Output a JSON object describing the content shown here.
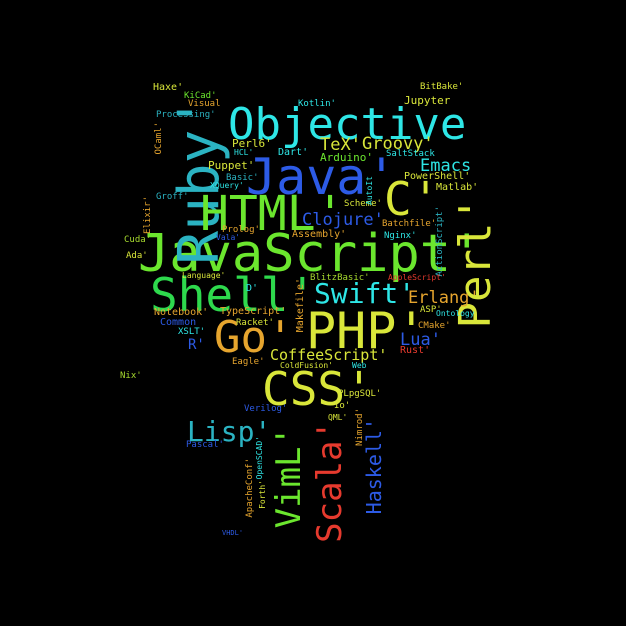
{
  "palette": {
    "background": "#000000",
    "cyan": "#2ee6e6",
    "lime": "#6be62e",
    "green": "#2ed94d",
    "blue": "#2d5be6",
    "yellow": "#d9e63a",
    "orange": "#e6a52e",
    "red": "#e63a2e",
    "teal": "#2bb3c2",
    "olive": "#a6d92e"
  },
  "words": [
    {
      "text": "Objective",
      "color": "#2ee6e6"
    },
    {
      "text": "JavaScript'",
      "color": "#6be62e"
    },
    {
      "text": "Java'",
      "color": "#2d5be6"
    },
    {
      "text": "Ruby'",
      "color": "#2bb3c2"
    },
    {
      "text": "HTML'",
      "color": "#6be62e"
    },
    {
      "text": "C'",
      "color": "#d9e63a"
    },
    {
      "text": "Shell'",
      "color": "#2ed94d"
    },
    {
      "text": "PHP'",
      "color": "#d9e63a"
    },
    {
      "text": "Perl'",
      "color": "#d9e63a"
    },
    {
      "text": "CSS'",
      "color": "#d9e63a"
    },
    {
      "text": "Go'",
      "color": "#e6a52e"
    },
    {
      "text": "Swift'",
      "color": "#2ee6e6"
    },
    {
      "text": "Lisp'",
      "color": "#2bb3c2"
    },
    {
      "text": "VimL'",
      "color": "#6be62e"
    },
    {
      "text": "Scala'",
      "color": "#e63a2e"
    },
    {
      "text": "Haskell'",
      "color": "#2d5be6"
    },
    {
      "text": "Clojure'",
      "color": "#2d5be6"
    },
    {
      "text": "Groovy'",
      "color": "#d9e63a"
    },
    {
      "text": "TeX'",
      "color": "#d9e63a"
    },
    {
      "text": "Emacs",
      "color": "#2ee6e6"
    },
    {
      "text": "Erlang'",
      "color": "#e6a52e"
    },
    {
      "text": "Lua'",
      "color": "#2d5be6"
    },
    {
      "text": "CoffeeScript'",
      "color": "#d9e63a"
    },
    {
      "text": "Haxe'",
      "color": "#d9e63a"
    },
    {
      "text": "KiCad'",
      "color": "#6be62e"
    },
    {
      "text": "Visual",
      "color": "#e6a52e"
    },
    {
      "text": "Processing'",
      "color": "#2bb3c2"
    },
    {
      "text": "Kotlin'",
      "color": "#2ee6e6"
    },
    {
      "text": "Jupyter",
      "color": "#d9e63a"
    },
    {
      "text": "BitBake'",
      "color": "#d9e63a"
    },
    {
      "text": "OCaml'",
      "color": "#e6a52e"
    },
    {
      "text": "Perl6'",
      "color": "#d9e63a"
    },
    {
      "text": "HCL'",
      "color": "#2ee6e6"
    },
    {
      "text": "Dart'",
      "color": "#2ee6e6"
    },
    {
      "text": "Arduino'",
      "color": "#6be62e"
    },
    {
      "text": "SaltStack",
      "color": "#2ee6e6"
    },
    {
      "text": "Puppet'",
      "color": "#d9e63a"
    },
    {
      "text": "Basic'",
      "color": "#2bb3c2"
    },
    {
      "text": "XQuery'",
      "color": "#2ee6e6"
    },
    {
      "text": "PowerShell'",
      "color": "#d9e63a"
    },
    {
      "text": "Matlab'",
      "color": "#d9e63a"
    },
    {
      "text": "Groff'",
      "color": "#2bb3c2"
    },
    {
      "text": "Scheme'",
      "color": "#d9e63a"
    },
    {
      "text": "Batchfile'",
      "color": "#e6a52e"
    },
    {
      "text": "Nginx'",
      "color": "#2ee6e6"
    },
    {
      "text": "Prolog'",
      "color": "#e6a52e"
    },
    {
      "text": "Vala'",
      "color": "#2d5be6"
    },
    {
      "text": "Assembly'",
      "color": "#e6a52e"
    },
    {
      "text": "Cuda'",
      "color": "#a6d92e"
    },
    {
      "text": "Elixir'",
      "color": "#e6a52e"
    },
    {
      "text": "AutoIt",
      "color": "#2ee6e6"
    },
    {
      "text": "ActionScript'",
      "color": "#2bb3c2"
    },
    {
      "text": "Ada'",
      "color": "#d9e63a"
    },
    {
      "text": "Language'",
      "color": "#d9e63a"
    },
    {
      "text": "BlitzBasic'",
      "color": "#a6d92e"
    },
    {
      "text": "AppleScript'",
      "color": "#e63a2e"
    },
    {
      "text": "D'",
      "color": "#2ee6e6"
    },
    {
      "text": "Notebook'",
      "color": "#e6a52e"
    },
    {
      "text": "TypeScript'",
      "color": "#e6a52e"
    },
    {
      "text": "Common",
      "color": "#2d5be6"
    },
    {
      "text": "Racket'",
      "color": "#d9e63a"
    },
    {
      "text": "Makefile'",
      "color": "#e6a52e"
    },
    {
      "text": "ASP'",
      "color": "#d9e63a"
    },
    {
      "text": "Ontology",
      "color": "#2ee6e6"
    },
    {
      "text": "CMake'",
      "color": "#e6a52e"
    },
    {
      "text": "XSLT'",
      "color": "#2ee6e6"
    },
    {
      "text": "R'",
      "color": "#2d5be6"
    },
    {
      "text": "Rust'",
      "color": "#e63a2e"
    },
    {
      "text": "Eagle'",
      "color": "#e6a52e"
    },
    {
      "text": "ColdFusion'",
      "color": "#d9e63a"
    },
    {
      "text": "Web",
      "color": "#2ee6e6"
    },
    {
      "text": "Nix'",
      "color": "#a6d92e"
    },
    {
      "text": "PLpgSQL'",
      "color": "#d9e63a"
    },
    {
      "text": "Io'",
      "color": "#d9e63a"
    },
    {
      "text": "Verilog'",
      "color": "#2d5be6"
    },
    {
      "text": "QML'",
      "color": "#d9e63a"
    },
    {
      "text": "Nimrod'",
      "color": "#e6a52e"
    },
    {
      "text": "Pascal'",
      "color": "#2d5be6"
    },
    {
      "text": "OpenSCAD'",
      "color": "#2ee6e6"
    },
    {
      "text": "ApacheConf'",
      "color": "#e6a52e"
    },
    {
      "text": "Forth'",
      "color": "#d9e63a"
    },
    {
      "text": "VHDL'",
      "color": "#2d5be6"
    }
  ]
}
